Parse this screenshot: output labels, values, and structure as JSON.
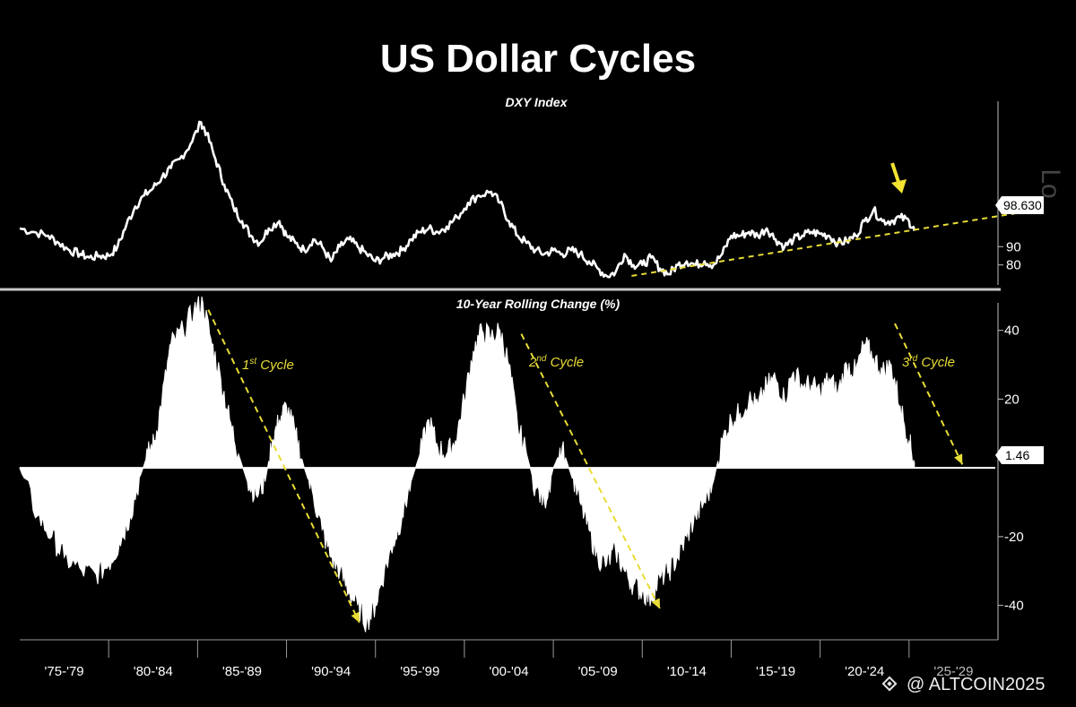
{
  "chart_data": [
    {
      "type": "line",
      "title": "US Dollar Cycles",
      "subtitle": "DXY Index",
      "x_range": [
        1975,
        2030
      ],
      "ylim": [
        72,
        170
      ],
      "y_ticks": [
        80,
        90
      ],
      "last_value_label": "98.630",
      "edge_letter": "Lo",
      "series": [
        {
          "values": [
            [
              1975.0,
              100
            ],
            [
              1975.8,
              98
            ],
            [
              1976.6,
              96
            ],
            [
              1977.2,
              92
            ],
            [
              1977.8,
              88
            ],
            [
              1978.4,
              86
            ],
            [
              1978.9,
              84
            ],
            [
              1979.5,
              85
            ],
            [
              1980.0,
              85
            ],
            [
              1980.5,
              90
            ],
            [
              1981.0,
              102
            ],
            [
              1981.5,
              112
            ],
            [
              1982.0,
              118
            ],
            [
              1982.5,
              122
            ],
            [
              1983.0,
              128
            ],
            [
              1983.5,
              133
            ],
            [
              1984.0,
              138
            ],
            [
              1984.6,
              146
            ],
            [
              1985.2,
              158
            ],
            [
              1985.5,
              152
            ],
            [
              1986.0,
              138
            ],
            [
              1986.5,
              124
            ],
            [
              1987.0,
              112
            ],
            [
              1987.5,
              104
            ],
            [
              1988.0,
              96
            ],
            [
              1988.5,
              92
            ],
            [
              1989.0,
              100
            ],
            [
              1989.6,
              104
            ],
            [
              1990.0,
              96
            ],
            [
              1990.5,
              92
            ],
            [
              1991.0,
              88
            ],
            [
              1991.5,
              94
            ],
            [
              1992.0,
              90
            ],
            [
              1992.5,
              82
            ],
            [
              1993.0,
              90
            ],
            [
              1993.5,
              94
            ],
            [
              1994.0,
              90
            ],
            [
              1994.5,
              86
            ],
            [
              1995.0,
              82
            ],
            [
              1995.5,
              84
            ],
            [
              1996.0,
              86
            ],
            [
              1996.5,
              88
            ],
            [
              1997.0,
              94
            ],
            [
              1997.5,
              98
            ],
            [
              1998.0,
              100
            ],
            [
              1998.5,
              98
            ],
            [
              1999.0,
              101
            ],
            [
              1999.6,
              106
            ],
            [
              2000.2,
              114
            ],
            [
              2000.8,
              118
            ],
            [
              2001.5,
              120
            ],
            [
              2002.0,
              114
            ],
            [
              2002.5,
              104
            ],
            [
              2003.0,
              96
            ],
            [
              2003.5,
              92
            ],
            [
              2004.0,
              88
            ],
            [
              2004.5,
              86
            ],
            [
              2005.0,
              88
            ],
            [
              2005.5,
              86
            ],
            [
              2006.0,
              88
            ],
            [
              2006.5,
              86
            ],
            [
              2007.0,
              82
            ],
            [
              2007.5,
              78
            ],
            [
              2008.0,
              74
            ],
            [
              2008.5,
              76
            ],
            [
              2009.0,
              86
            ],
            [
              2009.5,
              80
            ],
            [
              2010.0,
              80
            ],
            [
              2010.5,
              84
            ],
            [
              2011.0,
              78
            ],
            [
              2011.5,
              75
            ],
            [
              2012.0,
              80
            ],
            [
              2012.5,
              82
            ],
            [
              2013.0,
              80
            ],
            [
              2013.5,
              82
            ],
            [
              2014.0,
              80
            ],
            [
              2014.5,
              86
            ],
            [
              2015.0,
              96
            ],
            [
              2015.5,
              96
            ],
            [
              2016.0,
              98
            ],
            [
              2016.5,
              96
            ],
            [
              2017.0,
              100
            ],
            [
              2017.5,
              94
            ],
            [
              2018.0,
              90
            ],
            [
              2018.5,
              94
            ],
            [
              2019.0,
              96
            ],
            [
              2019.5,
              98
            ],
            [
              2020.0,
              97
            ],
            [
              2020.5,
              96
            ],
            [
              2021.0,
              92
            ],
            [
              2021.5,
              93
            ],
            [
              2022.0,
              96
            ],
            [
              2022.5,
              104
            ],
            [
              2023.0,
              110
            ],
            [
              2023.5,
              104
            ],
            [
              2024.0,
              104
            ],
            [
              2024.5,
              106
            ],
            [
              2025.0,
              104
            ],
            [
              2025.3,
              98.63
            ]
          ]
        }
      ],
      "annotations": {
        "trendline_color": "#e8dc36",
        "trendline": [
          [
            2009.4,
            74
          ],
          [
            2032.1,
            110
          ]
        ],
        "arrow_color": "#f1e330"
      }
    },
    {
      "type": "bar",
      "title": "10-Year Rolling Change (%)",
      "x_range": [
        1975,
        2030
      ],
      "ylim": [
        -50,
        48
      ],
      "y_ticks": [
        40,
        20,
        -20,
        -40
      ],
      "last_value_label": "1.46",
      "series": [
        {
          "values": [
            [
              1975.0,
              0
            ],
            [
              1976.0,
              -14
            ],
            [
              1976.8,
              -20
            ],
            [
              1977.5,
              -26
            ],
            [
              1978.5,
              -30
            ],
            [
              1979.3,
              -31
            ],
            [
              1980.0,
              -28
            ],
            [
              1980.6,
              -22
            ],
            [
              1981.2,
              -14
            ],
            [
              1981.8,
              -2
            ],
            [
              1982.2,
              4
            ],
            [
              1982.6,
              8
            ],
            [
              1983.0,
              20
            ],
            [
              1983.5,
              36
            ],
            [
              1984.2,
              40
            ],
            [
              1984.8,
              46
            ],
            [
              1985.3,
              48
            ],
            [
              1985.8,
              36
            ],
            [
              1986.3,
              26
            ],
            [
              1986.8,
              14
            ],
            [
              1987.3,
              4
            ],
            [
              1987.8,
              -4
            ],
            [
              1988.3,
              -8
            ],
            [
              1988.8,
              -4
            ],
            [
              1989.2,
              8
            ],
            [
              1989.6,
              14
            ],
            [
              1990.0,
              18
            ],
            [
              1990.5,
              10
            ],
            [
              1991.0,
              0
            ],
            [
              1991.5,
              -8
            ],
            [
              1992.0,
              -18
            ],
            [
              1992.5,
              -26
            ],
            [
              1993.0,
              -30
            ],
            [
              1993.5,
              -36
            ],
            [
              1994.0,
              -40
            ],
            [
              1994.5,
              -45
            ],
            [
              1995.0,
              -40
            ],
            [
              1995.5,
              -30
            ],
            [
              1996.0,
              -22
            ],
            [
              1996.5,
              -14
            ],
            [
              1997.0,
              -4
            ],
            [
              1997.5,
              4
            ],
            [
              1998.0,
              14
            ],
            [
              1998.5,
              6
            ],
            [
              1999.0,
              4
            ],
            [
              1999.5,
              8
            ],
            [
              2000.0,
              20
            ],
            [
              2000.5,
              34
            ],
            [
              2001.0,
              40
            ],
            [
              2001.5,
              38
            ],
            [
              2002.0,
              40
            ],
            [
              2002.5,
              30
            ],
            [
              2003.0,
              12
            ],
            [
              2003.5,
              4
            ],
            [
              2004.0,
              -6
            ],
            [
              2004.5,
              -10
            ],
            [
              2005.0,
              0
            ],
            [
              2005.5,
              6
            ],
            [
              2006.0,
              -2
            ],
            [
              2006.5,
              -10
            ],
            [
              2007.0,
              -18
            ],
            [
              2007.5,
              -26
            ],
            [
              2008.0,
              -28
            ],
            [
              2008.5,
              -24
            ],
            [
              2009.0,
              -30
            ],
            [
              2009.5,
              -34
            ],
            [
              2010.0,
              -36
            ],
            [
              2010.5,
              -38
            ],
            [
              2011.0,
              -32
            ],
            [
              2011.5,
              -30
            ],
            [
              2012.0,
              -26
            ],
            [
              2012.5,
              -20
            ],
            [
              2013.0,
              -14
            ],
            [
              2013.5,
              -10
            ],
            [
              2014.0,
              -4
            ],
            [
              2014.5,
              8
            ],
            [
              2015.0,
              14
            ],
            [
              2015.5,
              16
            ],
            [
              2016.0,
              20
            ],
            [
              2016.5,
              18
            ],
            [
              2017.0,
              24
            ],
            [
              2017.5,
              26
            ],
            [
              2018.0,
              20
            ],
            [
              2018.5,
              28
            ],
            [
              2019.0,
              24
            ],
            [
              2019.5,
              24
            ],
            [
              2020.0,
              22
            ],
            [
              2020.5,
              26
            ],
            [
              2021.0,
              22
            ],
            [
              2021.5,
              30
            ],
            [
              2022.0,
              28
            ],
            [
              2022.5,
              36
            ],
            [
              2023.0,
              32
            ],
            [
              2023.5,
              28
            ],
            [
              2024.0,
              30
            ],
            [
              2024.5,
              18
            ],
            [
              2025.0,
              8
            ],
            [
              2025.3,
              1.46
            ]
          ]
        }
      ],
      "annotations": {
        "cycle_color": "#e8dc36",
        "cycle_labels": [
          {
            "base": "1",
            "sup": "st",
            "rest": " Cycle"
          },
          {
            "base": "2",
            "sup": "nd",
            "rest": " Cycle"
          },
          {
            "base": "3",
            "sup": "rd",
            "rest": " Cycle"
          }
        ],
        "cycle_lines": [
          [
            [
              1985.6,
              46
            ],
            [
              1994.1,
              -45
            ]
          ],
          [
            [
              2003.2,
              39
            ],
            [
              2011.0,
              -41
            ]
          ],
          [
            [
              2024.2,
              42
            ],
            [
              2028.0,
              1
            ]
          ]
        ]
      }
    }
  ],
  "x_axis_labels": [
    "'75-'79",
    "'80-'84",
    "'85-'89",
    "'90-'94",
    "'95-'99",
    "'00-'04",
    "'05-'09",
    "'10-'14",
    "'15-'19",
    "'20-'24",
    "'25-'29"
  ],
  "watermark": "@ ALTCOIN2025"
}
